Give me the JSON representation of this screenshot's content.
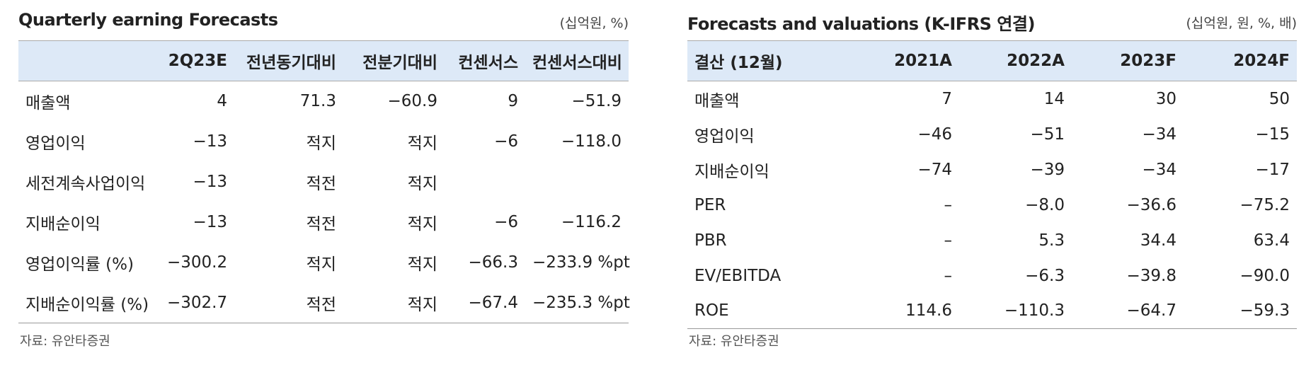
{
  "left": {
    "title": "Quarterly earning Forecasts",
    "unit": "(십억원, %)",
    "header": [
      null,
      "2Q23E",
      "전년동기대비",
      "전분기대비",
      "컨센서스",
      "컨센서스대비"
    ],
    "rows": [
      [
        "매출액",
        "4",
        "71.3",
        "−60.9",
        "9",
        "−51.9"
      ],
      [
        "영업이익",
        "−13",
        "적지",
        "적지",
        "−6",
        "−118.0"
      ],
      [
        "세전계속사업이익",
        "−13",
        "적전",
        "적지",
        null,
        null
      ],
      [
        "지배순이익",
        "−13",
        "적전",
        "적지",
        "−6",
        "−116.2"
      ],
      [
        "영업이익률 (%)",
        "−300.2",
        "적지",
        "적지",
        "−66.3",
        "−233.9 %pt"
      ],
      [
        "지배순이익률 (%)",
        "−302.7",
        "적전",
        "적지",
        "−67.4",
        "−235.3 %pt"
      ]
    ],
    "source": "자료: 유안타증권"
  },
  "right": {
    "title": "Forecasts and valuations (K-IFRS 연결)",
    "unit": "(십억원, 원, %, 배)",
    "header": [
      "결산 (12월)",
      "2021A",
      "2022A",
      "2023F",
      "2024F"
    ],
    "rows": [
      [
        "매출액",
        "7",
        "14",
        "30",
        "50"
      ],
      [
        "영업이익",
        "−46",
        "−51",
        "−34",
        "−15"
      ],
      [
        "지배순이익",
        "−74",
        "−39",
        "−34",
        "−17"
      ],
      [
        "PER",
        "–",
        "−8.0",
        "−36.6",
        "−75.2"
      ],
      [
        "PBR",
        "–",
        "5.3",
        "34.4",
        "63.4"
      ],
      [
        "EV/EBITDA",
        "–",
        "−6.3",
        "−39.8",
        "−90.0"
      ],
      [
        "ROE",
        "114.6",
        "−110.3",
        "−64.7",
        "−59.3"
      ]
    ],
    "source": "자료: 유안타증권"
  }
}
